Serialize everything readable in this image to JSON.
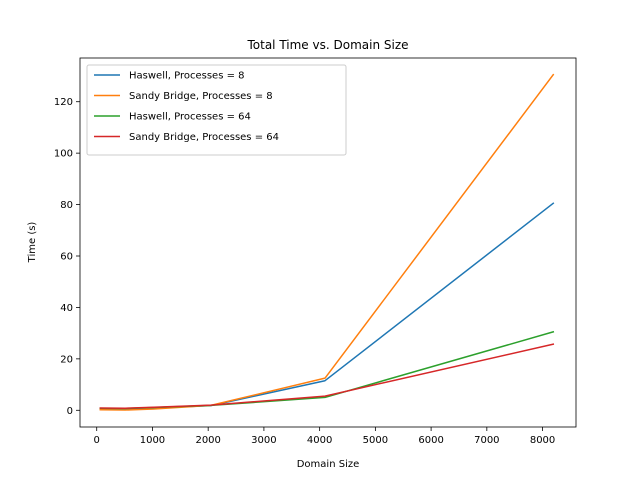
{
  "chart_data": {
    "type": "line",
    "title": "Total Time vs. Domain Size",
    "xlabel": "Domain Size",
    "ylabel": "Time (s)",
    "xlim": [
      -300,
      8600
    ],
    "ylim": [
      -6.5,
      137
    ],
    "xticks": [
      0,
      1000,
      2000,
      3000,
      4000,
      5000,
      6000,
      7000,
      8000
    ],
    "yticks": [
      0,
      20,
      40,
      60,
      80,
      100,
      120
    ],
    "grid": false,
    "legend_position": "upper-left",
    "x": [
      64,
      512,
      1024,
      2048,
      4096,
      8192
    ],
    "series": [
      {
        "name": "Haswell, Processes = 8",
        "color": "#1f77b4",
        "values": [
          0.5,
          0.5,
          0.9,
          1.8,
          11.5,
          80.5
        ]
      },
      {
        "name": "Sandy Bridge, Processes = 8",
        "color": "#ff7f0e",
        "values": [
          0.2,
          0.1,
          0.5,
          1.9,
          12.5,
          130.5
        ]
      },
      {
        "name": "Haswell, Processes = 64",
        "color": "#2ca02c",
        "values": [
          0.8,
          0.7,
          1.1,
          1.9,
          5.0,
          30.5
        ]
      },
      {
        "name": "Sandy Bridge, Processes = 64",
        "color": "#d62728",
        "values": [
          0.9,
          0.8,
          1.2,
          2.0,
          5.5,
          25.7
        ]
      }
    ]
  }
}
